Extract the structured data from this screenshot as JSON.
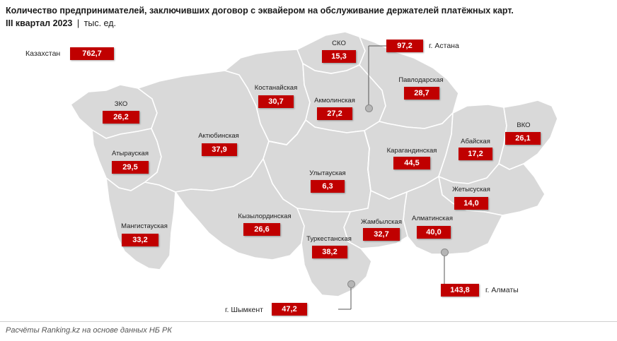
{
  "header": {
    "title": "Количество предпринимателей, заключивших договор с эквайером на обслуживание держателей платёжных карт.",
    "period": "III квартал 2023",
    "separator": "|",
    "unit": "тыс. ед."
  },
  "total": {
    "label": "Казахстан",
    "value": "762,7"
  },
  "regions": [
    {
      "name": "СКО",
      "value": "15,3"
    },
    {
      "name": "Костанайская",
      "value": "30,7"
    },
    {
      "name": "Акмолинская",
      "value": "27,2"
    },
    {
      "name": "Павлодарская",
      "value": "28,7"
    },
    {
      "name": "ЗКО",
      "value": "26,2"
    },
    {
      "name": "Актюбинская",
      "value": "37,9"
    },
    {
      "name": "Атырауская",
      "value": "29,5"
    },
    {
      "name": "Карагандинская",
      "value": "44,5"
    },
    {
      "name": "Абайская",
      "value": "17,2"
    },
    {
      "name": "ВКО",
      "value": "26,1"
    },
    {
      "name": "Улытауская",
      "value": "6,3"
    },
    {
      "name": "Жетысуская",
      "value": "14,0"
    },
    {
      "name": "Мангистауская",
      "value": "33,2"
    },
    {
      "name": "Кызылординская",
      "value": "26,6"
    },
    {
      "name": "Жамбылская",
      "value": "32,7"
    },
    {
      "name": "Алматинская",
      "value": "40,0"
    },
    {
      "name": "Туркестанская",
      "value": "38,2"
    }
  ],
  "cities": [
    {
      "name": "г. Астана",
      "value": "97,2"
    },
    {
      "name": "г. Алматы",
      "value": "143,8"
    },
    {
      "name": "г. Шымкент",
      "value": "47,2"
    }
  ],
  "colors": {
    "accent": "#c00000",
    "region_fill": "#d9d9d9",
    "border": "#ffffff"
  },
  "source": "Расчёты Ranking.kz на основе данных НБ РК"
}
